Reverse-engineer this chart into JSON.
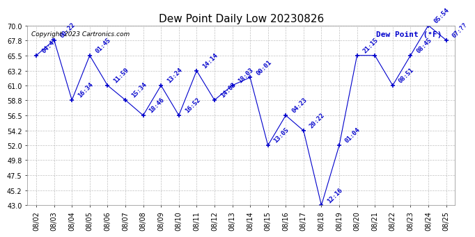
{
  "title": "Dew Point Daily Low 20230826",
  "ylabel": "Dew Point (°F)",
  "copyright": "Copyright 2023 Cartronics.com",
  "line_color": "#0000cc",
  "marker": "+",
  "background_color": "#ffffff",
  "grid_color": "#b0b0b0",
  "ylim": [
    43.0,
    70.0
  ],
  "yticks": [
    43.0,
    45.2,
    47.5,
    49.8,
    52.0,
    54.2,
    56.5,
    58.8,
    61.0,
    63.2,
    65.5,
    67.8,
    70.0
  ],
  "dates": [
    "08/02",
    "08/03",
    "08/04",
    "08/05",
    "08/06",
    "08/07",
    "08/08",
    "08/09",
    "08/10",
    "08/11",
    "08/12",
    "08/13",
    "08/14",
    "08/15",
    "08/16",
    "08/17",
    "08/18",
    "08/19",
    "08/20",
    "08/21",
    "08/22",
    "08/23",
    "08/24",
    "08/25"
  ],
  "values": [
    65.5,
    67.8,
    58.8,
    65.5,
    61.0,
    58.8,
    56.5,
    61.0,
    56.5,
    63.2,
    58.8,
    61.0,
    62.2,
    52.0,
    56.5,
    54.2,
    43.0,
    52.0,
    65.5,
    65.5,
    61.0,
    65.5,
    70.0,
    67.8
  ],
  "annotations": [
    "04:47",
    "00:22",
    "16:34",
    "01:45",
    "11:59",
    "15:34",
    "18:46",
    "13:24",
    "16:52",
    "14:14",
    "14:03",
    "18:03",
    "00:01",
    "13:05",
    "04:23",
    "20:22",
    "12:16",
    "01:04",
    "21:15",
    "",
    "08:51",
    "08:45",
    "05:54",
    "07:??"
  ],
  "annotation_color": "#0000cc",
  "annotation_fontsize": 6.5,
  "title_fontsize": 11,
  "tick_fontsize": 7,
  "copyright_fontsize": 6.5,
  "legend_fontsize": 8
}
